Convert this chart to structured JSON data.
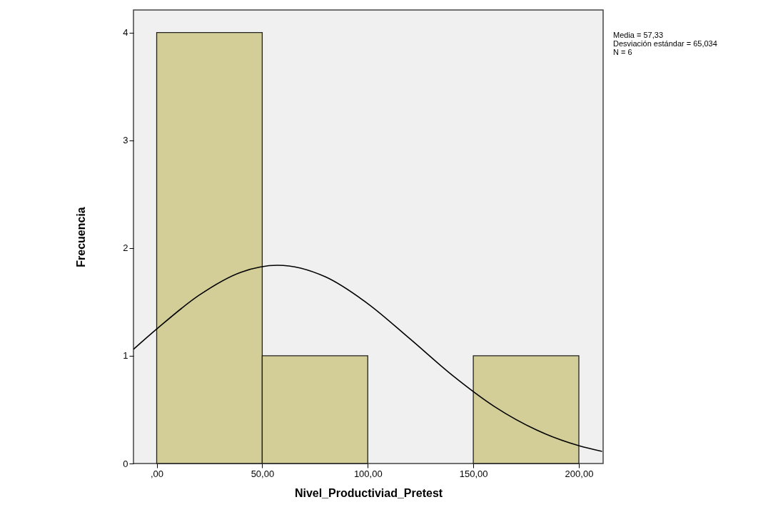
{
  "chart_data": {
    "type": "histogram",
    "xlabel": "Nivel_Productiviad_Pretest",
    "ylabel": "Frecuencia",
    "bins": [
      0,
      50,
      100,
      150,
      200
    ],
    "values": [
      4,
      1,
      0,
      1
    ],
    "color": "#d3ce97",
    "series": [
      {
        "type": "line",
        "color": "#000000",
        "x": [
          -11,
          0,
          20,
          40,
          57.33,
          80,
          100,
          120,
          140,
          160,
          180,
          200,
          211
        ],
        "values": [
          1.06,
          1.248,
          1.561,
          1.776,
          1.84,
          1.732,
          1.484,
          1.157,
          0.82,
          0.529,
          0.311,
          0.166,
          0.113
        ]
      }
    ],
    "xlim": [
      -11,
      211.5
    ],
    "ylim": [
      0,
      4.21
    ],
    "xticks": [
      {
        "value": 0,
        "label": ",00"
      },
      {
        "value": 50,
        "label": "50,00"
      },
      {
        "value": 100,
        "label": "100,00"
      },
      {
        "value": 150,
        "label": "150,00"
      },
      {
        "value": 200,
        "label": "200,00"
      }
    ],
    "yticks": [
      0,
      1,
      2,
      3,
      4
    ],
    "grid": false,
    "annotations": [
      "Media = 57,33",
      "Desviación estándar = 65,034",
      "N = 6"
    ]
  }
}
